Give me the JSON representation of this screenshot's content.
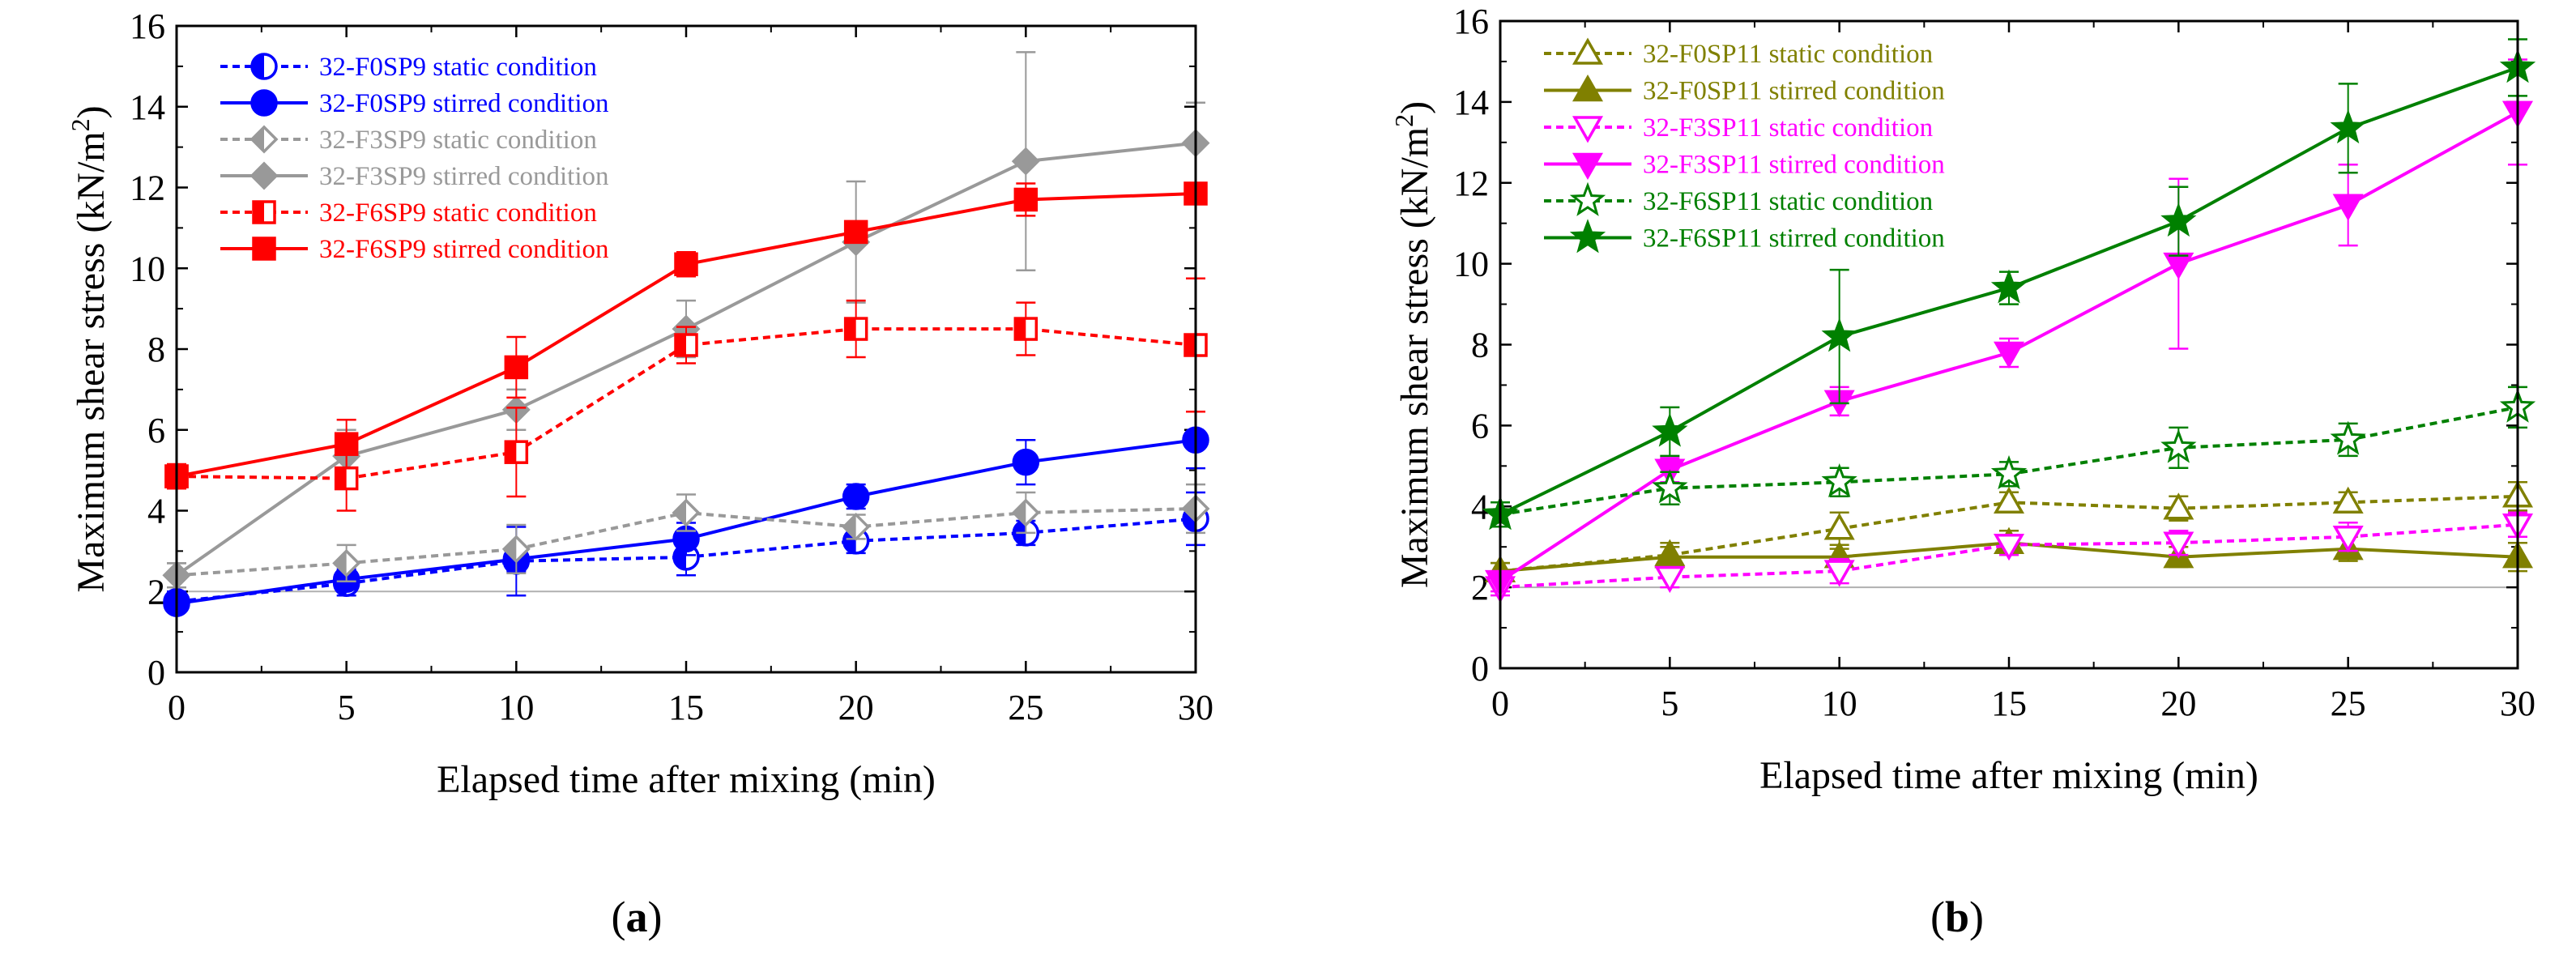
{
  "figure": {
    "panels": [
      {
        "id": "a",
        "label_prefix": "(",
        "label_letter": "a",
        "label_suffix": ")"
      },
      {
        "id": "b",
        "label_prefix": "(",
        "label_letter": "b",
        "label_suffix": ")"
      }
    ]
  },
  "chart_data": [
    {
      "panel": "a",
      "type": "line",
      "xlabel": "Elapsed time after mixing (min)",
      "ylabel": "Maximum shear stress (kN/m2)",
      "ylabel_base": "Maximum shear stress (kN/m",
      "ylabel_sup": "2",
      "ylabel_close": ")",
      "xlim": [
        0,
        30
      ],
      "ylim": [
        0,
        16
      ],
      "xticks": [
        0,
        5,
        10,
        15,
        20,
        25,
        30
      ],
      "yticks": [
        0,
        2,
        4,
        6,
        8,
        10,
        12,
        14,
        16
      ],
      "reference_line": 2,
      "x": [
        0,
        5,
        10,
        15,
        20,
        25,
        30
      ],
      "series": [
        {
          "name": "32-F0SP9 static condition",
          "color": "#0000ff",
          "dashed": true,
          "marker": "circle-half",
          "values": [
            1.75,
            2.2,
            2.75,
            2.85,
            3.25,
            3.45,
            3.8
          ],
          "err": [
            0.25,
            0.3,
            0.85,
            0.45,
            0.3,
            0.3,
            0.65
          ]
        },
        {
          "name": "32-F0SP9 stirred condition",
          "color": "#0000ff",
          "dashed": false,
          "marker": "circle",
          "values": [
            1.7,
            2.3,
            2.8,
            3.3,
            4.35,
            5.2,
            5.75
          ],
          "err": [
            0.2,
            0.25,
            0.3,
            0.4,
            0.3,
            0.55,
            0.7
          ]
        },
        {
          "name": "32-F3SP9 static condition",
          "color": "#999999",
          "dashed": true,
          "marker": "diamond-half",
          "values": [
            2.4,
            2.7,
            3.05,
            3.95,
            3.6,
            3.95,
            4.05
          ],
          "err": [
            0.3,
            0.45,
            0.6,
            0.45,
            0.3,
            0.5,
            0.6
          ]
        },
        {
          "name": "32-F3SP9 stirred condition",
          "color": "#999999",
          "dashed": false,
          "marker": "diamond",
          "values": [
            2.4,
            5.35,
            6.5,
            8.5,
            10.65,
            12.65,
            13.1
          ],
          "err": [
            0.3,
            0.65,
            0.5,
            0.7,
            1.5,
            2.7,
            1.0
          ]
        },
        {
          "name": "32-F6SP9 static condition",
          "color": "#ff0000",
          "dashed": true,
          "marker": "square-half",
          "values": [
            4.85,
            4.8,
            5.45,
            8.1,
            8.5,
            8.5,
            8.1
          ],
          "err": [
            0.3,
            0.8,
            1.1,
            0.45,
            0.7,
            0.65,
            1.65
          ]
        },
        {
          "name": "32-F6SP9 stirred condition",
          "color": "#ff0000",
          "dashed": false,
          "marker": "square",
          "values": [
            4.85,
            5.65,
            7.55,
            10.1,
            10.9,
            11.7,
            11.85
          ],
          "err": [
            0.3,
            0.6,
            0.75,
            0.3,
            0.25,
            0.4,
            0.15
          ]
        }
      ]
    },
    {
      "panel": "b",
      "type": "line",
      "xlabel": "Elapsed time after mixing (min)",
      "ylabel": "Maximum shear stress (kN/m2)",
      "ylabel_base": "Maximum shear stress (kN/m",
      "ylabel_sup": "2",
      "ylabel_close": ")",
      "xlim": [
        0,
        30
      ],
      "ylim": [
        0,
        16
      ],
      "xticks": [
        0,
        5,
        10,
        15,
        20,
        25,
        30
      ],
      "yticks": [
        0,
        2,
        4,
        6,
        8,
        10,
        12,
        14,
        16
      ],
      "reference_line": 2,
      "x": [
        0,
        5,
        10,
        15,
        20,
        25,
        30
      ],
      "series": [
        {
          "name": "32-F0SP11 static condition",
          "color": "#808000",
          "dashed": true,
          "marker": "triangle-up-open",
          "values": [
            2.4,
            2.8,
            3.45,
            4.1,
            3.95,
            4.1,
            4.25
          ],
          "err": [
            0.2,
            0.3,
            0.4,
            0.25,
            0.3,
            0.25,
            0.35
          ]
        },
        {
          "name": "32-F0SP11 stirred condition",
          "color": "#808000",
          "dashed": false,
          "marker": "triangle-up",
          "values": [
            2.4,
            2.75,
            2.75,
            3.1,
            2.75,
            2.95,
            2.75
          ],
          "err": [
            0.2,
            0.25,
            0.2,
            0.3,
            0.25,
            0.3,
            0.35
          ]
        },
        {
          "name": "32-F3SP11 static condition",
          "color": "#ff00ff",
          "dashed": true,
          "marker": "triangle-down-open",
          "values": [
            2.0,
            2.25,
            2.4,
            3.05,
            3.1,
            3.25,
            3.55
          ],
          "err": [
            0.2,
            0.25,
            0.3,
            0.25,
            0.3,
            0.35,
            0.3
          ]
        },
        {
          "name": "32-F3SP11 stirred condition",
          "color": "#ff00ff",
          "dashed": false,
          "marker": "triangle-down",
          "values": [
            2.15,
            4.9,
            6.6,
            7.8,
            10.0,
            11.45,
            13.75
          ],
          "err": [
            0.25,
            0.3,
            0.35,
            0.35,
            2.1,
            1.0,
            1.3
          ]
        },
        {
          "name": "32-F6SP11 static condition",
          "color": "#008000",
          "dashed": true,
          "marker": "star-open",
          "values": [
            3.8,
            4.45,
            4.6,
            4.8,
            5.45,
            5.65,
            6.45
          ],
          "err": [
            0.3,
            0.4,
            0.35,
            0.3,
            0.5,
            0.4,
            0.5
          ]
        },
        {
          "name": "32-F6SP11 stirred condition",
          "color": "#008000",
          "dashed": false,
          "marker": "star",
          "values": [
            3.8,
            5.85,
            8.2,
            9.4,
            11.05,
            13.35,
            14.85
          ],
          "err": [
            0.3,
            0.6,
            1.65,
            0.4,
            0.85,
            1.1,
            0.7
          ]
        }
      ]
    }
  ]
}
